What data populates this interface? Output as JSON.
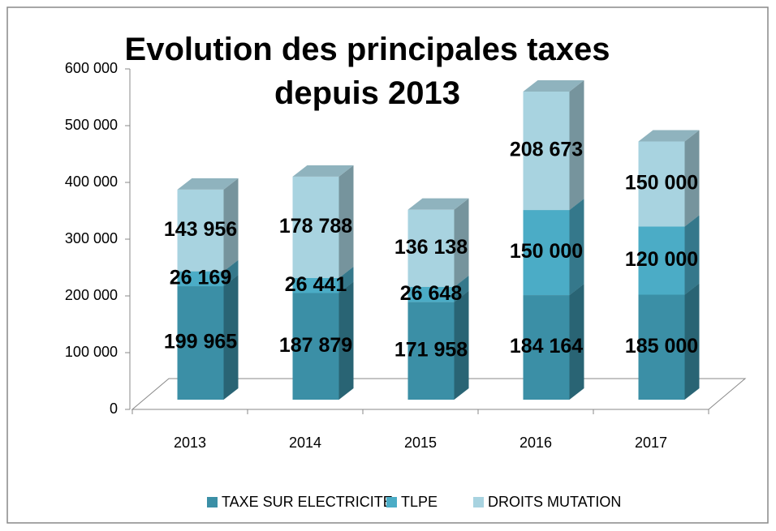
{
  "chart_data": {
    "type": "bar3d_stacked",
    "title": "Evolution des principales taxes depuis 2013",
    "categories": [
      "2013",
      "2014",
      "2015",
      "2016",
      "2017"
    ],
    "series": [
      {
        "name": "TAXE SUR ELECTRICITE",
        "color": "#3b8fa6",
        "values": [
          199965,
          187879,
          171958,
          184164,
          185000
        ],
        "value_labels": [
          "199 965",
          "187 879",
          "171 958",
          "184 164",
          "185 000"
        ]
      },
      {
        "name": "TLPE",
        "color": "#4bacc6",
        "values": [
          26169,
          26441,
          26648,
          150000,
          120000
        ],
        "value_labels": [
          "26 169",
          "26 441",
          "26 648",
          "150 000",
          "120 000"
        ]
      },
      {
        "name": "DROITS MUTATION",
        "color": "#a8d3e0",
        "values": [
          143956,
          178788,
          136138,
          208673,
          150000
        ],
        "value_labels": [
          "143 956",
          "178 788",
          "136 138",
          "208 673",
          "150 000"
        ]
      }
    ],
    "ylim": [
      0,
      600000
    ],
    "yticks": [
      0,
      {
        "value": 100000,
        "label": "100 000"
      },
      {
        "value": 200000,
        "label": "200 000"
      },
      {
        "value": 300000,
        "label": "300 000"
      },
      {
        "value": 400000,
        "label": "400 000"
      },
      {
        "value": 500000,
        "label": "500 000"
      },
      {
        "value": 600000,
        "label": "600 000"
      }
    ],
    "legend": "bottom"
  }
}
